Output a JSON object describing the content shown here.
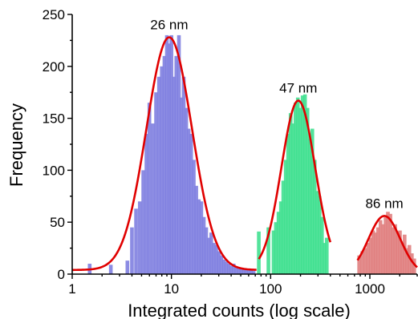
{
  "chart_data": {
    "type": "bar",
    "xlabel": "Integrated counts (log scale)",
    "ylabel": "Frequency",
    "xscale": "log",
    "xlim": [
      1,
      3000
    ],
    "ylim": [
      0,
      250
    ],
    "x_ticks": [
      1,
      10,
      100,
      1000
    ],
    "x_tick_labels": [
      "1",
      "10",
      "100",
      "1000"
    ],
    "y_ticks": [
      0,
      50,
      100,
      150,
      200,
      250
    ],
    "y_tick_labels": [
      "0",
      "50",
      "100",
      "150",
      "200",
      "250"
    ],
    "grid": false,
    "series": [
      {
        "color": "#8080e0",
        "fit_color": "#e00000",
        "annotation": "26 nm",
        "fit": {
          "amplitude": 228,
          "center": 9.5,
          "sigma_log10": 0.23,
          "baseline": 4
        },
        "x": [
          1.5,
          2.45,
          3.6,
          4.0,
          4.4,
          4.8,
          5.2,
          5.6,
          6.0,
          6.5,
          7.0,
          7.5,
          8.0,
          8.5,
          9.0,
          9.5,
          10.0,
          10.6,
          11.2,
          11.9,
          12.6,
          13.3,
          14.1,
          14.9,
          15.8,
          16.8,
          17.8,
          18.9,
          20.0,
          21.2,
          22.4,
          23.8,
          25.2,
          26.7,
          28.3,
          30.0,
          31.8,
          33.7,
          35.7,
          37.8,
          40.0,
          42.4,
          45.0,
          47.7,
          50.5,
          53.5,
          56.7,
          60.0,
          63.6,
          67.4
        ],
        "values": [
          10,
          9,
          13,
          45,
          63,
          70,
          100,
          135,
          165,
          145,
          175,
          190,
          200,
          210,
          230,
          222,
          230,
          190,
          210,
          230,
          170,
          190,
          160,
          140,
          135,
          110,
          85,
          72,
          70,
          55,
          45,
          35,
          40,
          30,
          28,
          22,
          18,
          14,
          12,
          10,
          8,
          10,
          7,
          6,
          6,
          5,
          4,
          4,
          5,
          3
        ]
      },
      {
        "color": "#40e090",
        "fit_color": "#e00000",
        "annotation": "47 nm",
        "fit": {
          "amplitude": 167,
          "center": 190,
          "sigma_log10": 0.17,
          "baseline": 4
        },
        "x": [
          76,
          95,
          107,
          113,
          120,
          127,
          134,
          142,
          150,
          159,
          168,
          178,
          188,
          199,
          210,
          222,
          235,
          249,
          263,
          278,
          294,
          311,
          329,
          348,
          368
        ],
        "values": [
          41,
          45,
          42,
          50,
          60,
          70,
          90,
          110,
          135,
          155,
          145,
          165,
          170,
          160,
          172,
          173,
          160,
          130,
          140,
          110,
          80,
          75,
          55,
          30,
          35
        ]
      },
      {
        "color": "#e08080",
        "fit_color": "#e00000",
        "annotation": "86 nm",
        "fit": {
          "amplitude": 56,
          "center": 1400,
          "sigma_log10": 0.16,
          "baseline": 0
        },
        "x": [
          780,
          840,
          900,
          960,
          1020,
          1080,
          1140,
          1210,
          1280,
          1360,
          1440,
          1520,
          1610,
          1700,
          1800,
          1900,
          2010,
          2120,
          2240,
          2370,
          2500,
          2650,
          2800
        ],
        "values": [
          18,
          22,
          25,
          30,
          35,
          42,
          40,
          45,
          52,
          48,
          55,
          60,
          58,
          45,
          48,
          40,
          42,
          30,
          38,
          25,
          28,
          20,
          15
        ]
      }
    ]
  }
}
